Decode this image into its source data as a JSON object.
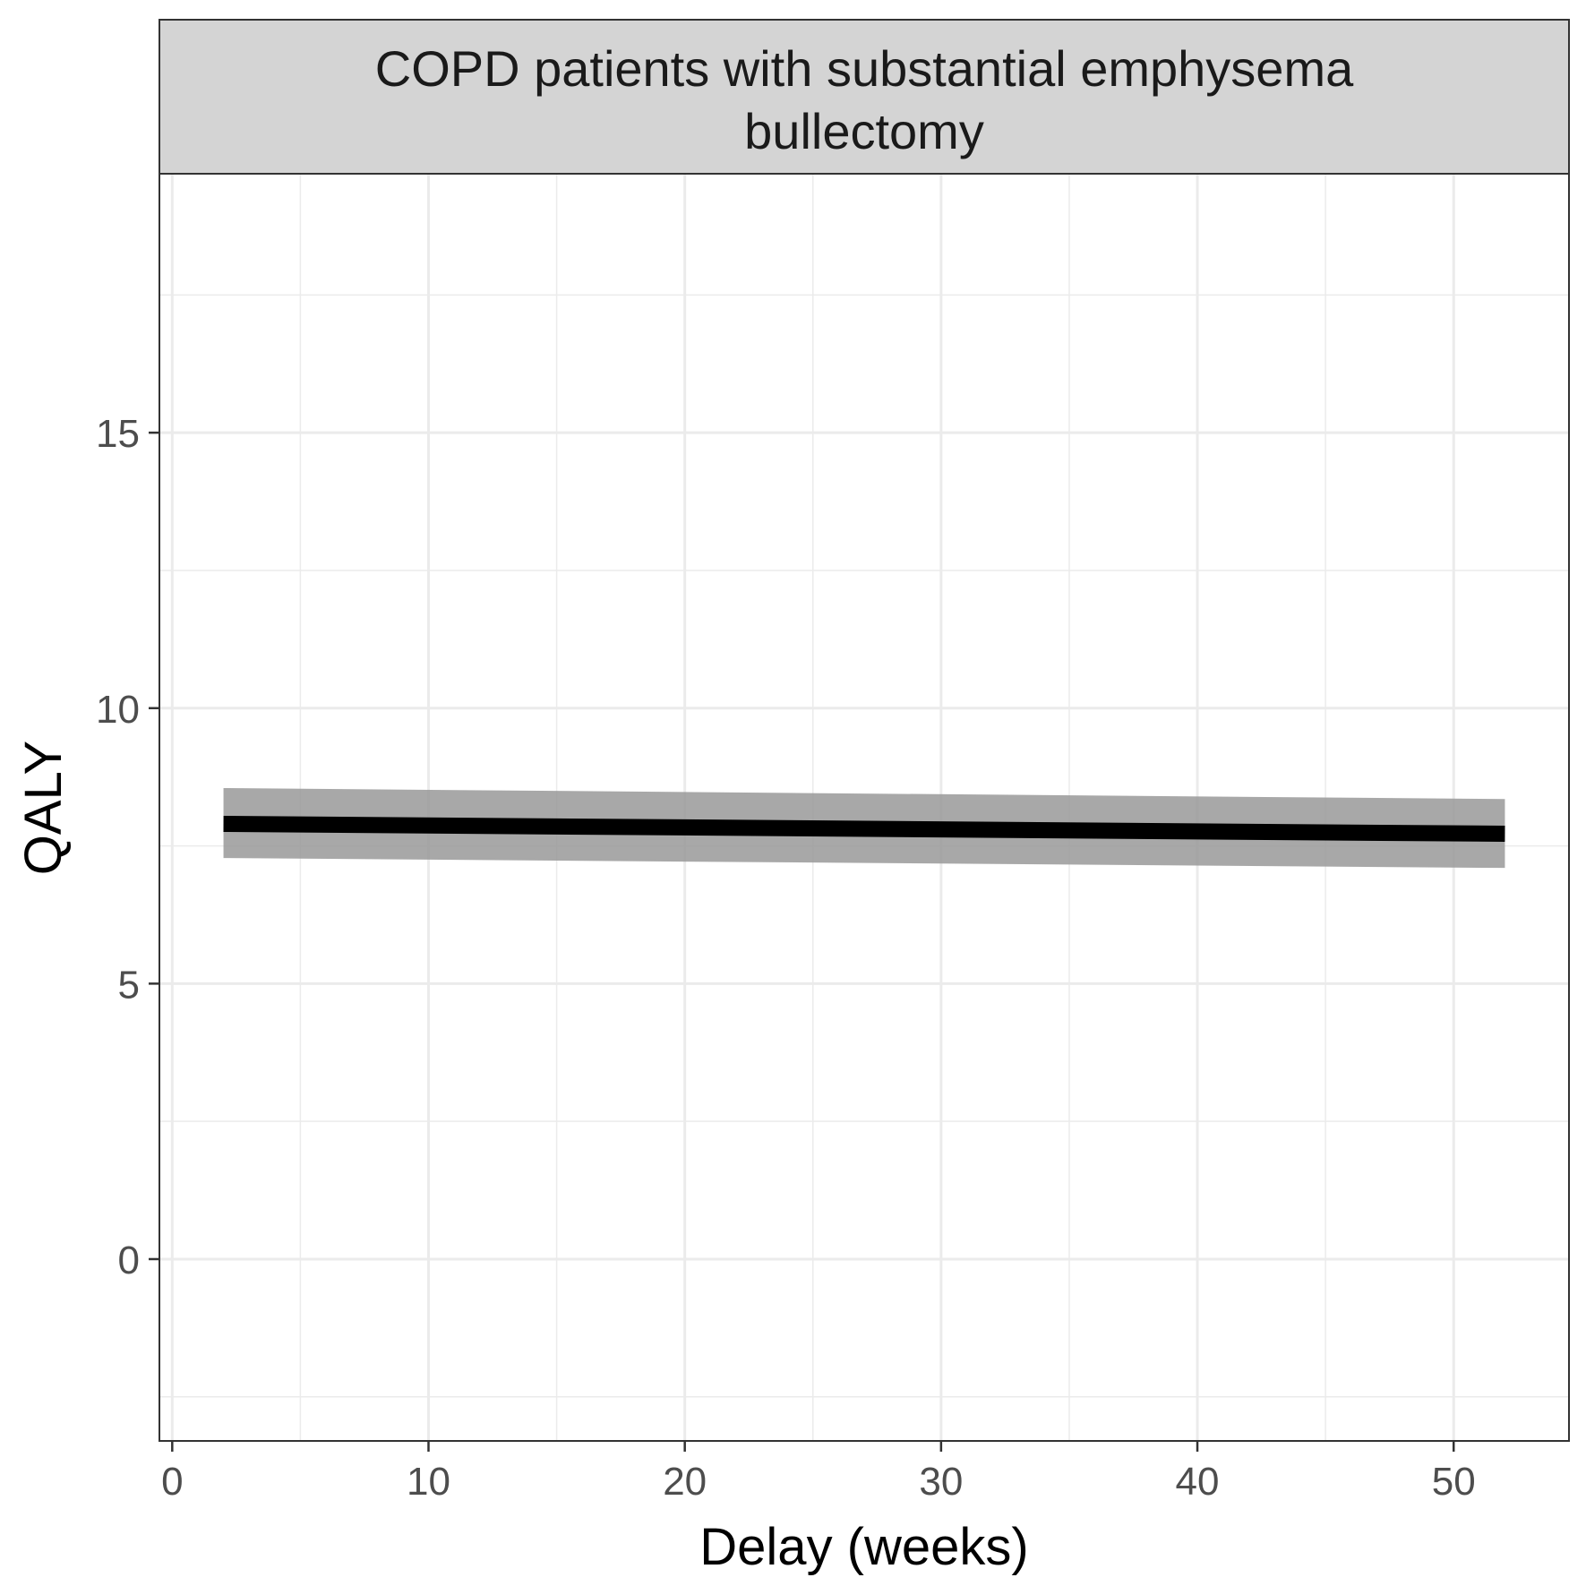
{
  "chart_data": {
    "type": "line",
    "facet_title": [
      "COPD patients with substantial emphysema",
      "bullectomy"
    ],
    "xlabel": "Delay (weeks)",
    "ylabel": "QALY",
    "xlim": [
      -0.5,
      54.5
    ],
    "ylim": [
      -3.3,
      19.7
    ],
    "x_ticks": [
      0,
      10,
      20,
      30,
      40,
      50
    ],
    "y_ticks": [
      0,
      5,
      10,
      15
    ],
    "x_minor_ticks": [
      5,
      15,
      25,
      35,
      45
    ],
    "y_minor_ticks": [
      -2.5,
      2.5,
      7.5,
      12.5,
      17.5
    ],
    "grid": true,
    "series": [
      {
        "x": [
          2,
          52
        ],
        "y": [
          7.9,
          7.72
        ],
        "ci_low": [
          7.28,
          7.1
        ],
        "ci_high": [
          8.55,
          8.35
        ]
      }
    ],
    "colors": {
      "line": "#000000",
      "ribbon": "#999999",
      "strip_fill": "#d4d4d4",
      "grid": "#ebebeb"
    }
  }
}
